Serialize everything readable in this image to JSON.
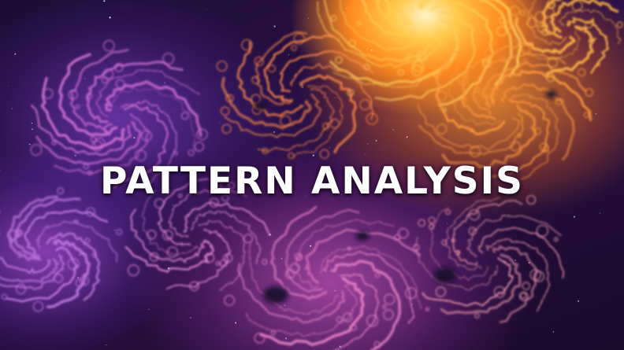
{
  "title": "PATTERN ANALYSIS",
  "colors": {
    "glow_core": "#fff3c4",
    "orange": "#ff8a1e",
    "pink": "#e76fc9",
    "violet": "#9a4fd6",
    "space": "#1c0b33"
  },
  "background_icon": "fractal-spiral-icon"
}
